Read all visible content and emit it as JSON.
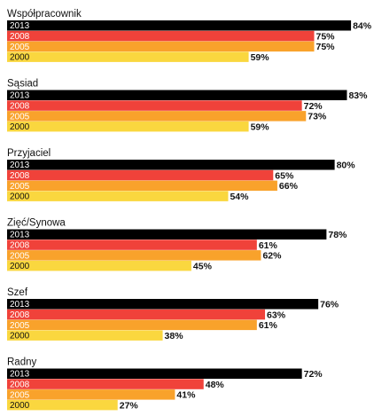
{
  "chart_data": {
    "type": "bar",
    "orientation": "horizontal",
    "value_unit": "%",
    "xlim": [
      0,
      100
    ],
    "series": [
      {
        "name": "2013",
        "color": "#000000",
        "label_color": "#ffffff"
      },
      {
        "name": "2008",
        "color": "#f0423a",
        "label_color": "#ffffff"
      },
      {
        "name": "2005",
        "color": "#f9a22b",
        "label_color": "#ffffff"
      },
      {
        "name": "2000",
        "color": "#fad73f",
        "label_color": "#111111"
      }
    ],
    "groups": [
      {
        "title": "Współpracownik",
        "values": [
          84,
          75,
          75,
          59
        ],
        "labels": [
          "84%",
          "75%",
          "75%",
          "59%"
        ]
      },
      {
        "title": "Sąsiad",
        "values": [
          83,
          72,
          73,
          59
        ],
        "labels": [
          "83%",
          "72%",
          "73%",
          "59%"
        ]
      },
      {
        "title": "Przyjaciel",
        "values": [
          80,
          65,
          66,
          54
        ],
        "labels": [
          "80%",
          "65%",
          "66%",
          "54%"
        ]
      },
      {
        "title": "Zięć/Synowa",
        "values": [
          78,
          61,
          62,
          45
        ],
        "labels": [
          "78%",
          "61%",
          "62%",
          "45%"
        ]
      },
      {
        "title": "Szef",
        "values": [
          76,
          63,
          61,
          38
        ],
        "labels": [
          "76%",
          "63%",
          "61%",
          "38%"
        ]
      },
      {
        "title": "Radny",
        "values": [
          72,
          48,
          41,
          27
        ],
        "labels": [
          "72%",
          "48%",
          "41%",
          "27%"
        ]
      }
    ]
  }
}
